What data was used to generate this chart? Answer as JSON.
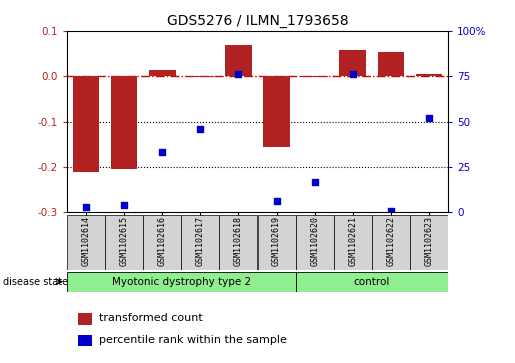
{
  "title": "GDS5276 / ILMN_1793658",
  "samples": [
    "GSM1102614",
    "GSM1102615",
    "GSM1102616",
    "GSM1102617",
    "GSM1102618",
    "GSM1102619",
    "GSM1102620",
    "GSM1102621",
    "GSM1102622",
    "GSM1102623"
  ],
  "red_values": [
    -0.21,
    -0.205,
    0.013,
    -0.001,
    0.068,
    -0.155,
    -0.001,
    0.058,
    0.053,
    0.005
  ],
  "blue_values_pct": [
    3,
    4,
    33,
    46,
    76,
    6,
    17,
    76,
    1,
    52
  ],
  "ylim_left": [
    -0.3,
    0.1
  ],
  "ylim_right": [
    0,
    100
  ],
  "yticks_left": [
    -0.3,
    -0.2,
    -0.1,
    0.0,
    0.1
  ],
  "yticks_right": [
    0,
    25,
    50,
    75,
    100
  ],
  "ytick_labels_right": [
    "0",
    "25",
    "50",
    "75",
    "100%"
  ],
  "disease_groups": [
    {
      "label": "Myotonic dystrophy type 2",
      "n_samples": 6,
      "color": "#90EE90"
    },
    {
      "label": "control",
      "n_samples": 4,
      "color": "#90EE90"
    }
  ],
  "disease_state_label": "disease state",
  "red_color": "#B22222",
  "blue_color": "#0000CD",
  "bar_bg_color": "#D3D3D3",
  "legend_red_label": "transformed count",
  "legend_blue_label": "percentile rank within the sample",
  "hline_color": "#CC0000",
  "dotted_line_color": "#000000",
  "bar_width": 0.7
}
